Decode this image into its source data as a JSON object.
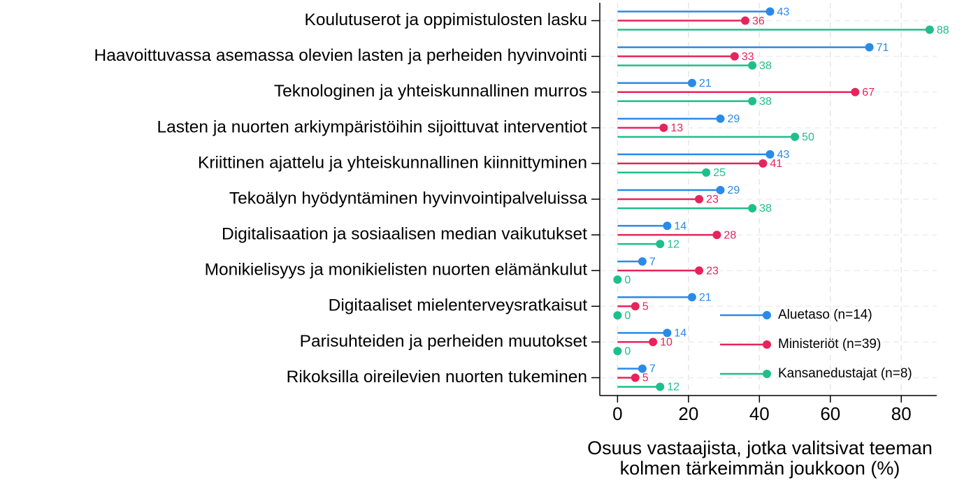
{
  "chart_data": {
    "type": "lollipop",
    "orientation": "horizontal",
    "categories": [
      "Koulutuserot ja oppimistulosten lasku",
      "Haavoittuvassa asemassa olevien lasten ja perheiden hyvinvointi",
      "Teknologinen ja yhteiskunnallinen murros",
      "Lasten ja nuorten arkiympäristöihin sijoittuvat interventiot",
      "Kriittinen ajattelu ja yhteiskunnallinen kiinnittyminen",
      "Tekoälyn hyödyntäminen hyvinvointipalveluissa",
      "Digitalisaation ja sosiaalisen median vaikutukset",
      "Monikielisyys ja monikielisten nuorten elämänkulut",
      "Digitaaliset mielenterveysratkaisut",
      "Parisuhteiden ja perheiden muutokset",
      "Rikoksilla oireilevien nuorten tukeminen"
    ],
    "series": [
      {
        "name": "Aluetaso (n=14)",
        "color": "#2a8ae8",
        "values": [
          43,
          71,
          21,
          29,
          43,
          29,
          14,
          7,
          21,
          14,
          7
        ]
      },
      {
        "name": "Ministeriöt (n=39)",
        "color": "#e6245c",
        "values": [
          36,
          33,
          67,
          13,
          41,
          23,
          28,
          23,
          5,
          10,
          5
        ]
      },
      {
        "name": "Kansanedustajat (n=8)",
        "color": "#1ebf8a",
        "values": [
          88,
          38,
          38,
          50,
          25,
          38,
          12,
          0,
          0,
          0,
          12
        ]
      }
    ],
    "xlabel": [
      "Osuus vastaajista, jotka valitsivat teeman",
      "kolmen tärkeimmän joukkoon (%)"
    ],
    "xlim": [
      -5,
      90
    ],
    "xticks": [
      0,
      20,
      40,
      60,
      80
    ],
    "grid": true,
    "legend": "lower right"
  }
}
